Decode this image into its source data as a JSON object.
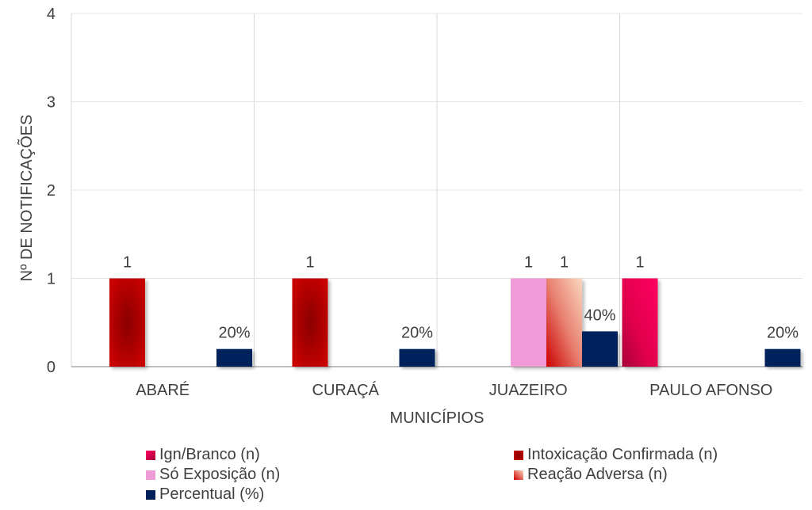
{
  "chart_data": {
    "type": "bar",
    "title": "",
    "xlabel": "MUNICÍPIOS",
    "ylabel": "Nº DE NOTIFICAÇÕES",
    "ylim": [
      0,
      4
    ],
    "yticks": [
      "0",
      "1",
      "2",
      "3",
      "4"
    ],
    "grid": true,
    "legend_position": "bottom",
    "categories": [
      "ABARÉ",
      "CURAÇÁ",
      "JUAZEIRO",
      "PAULO AFONSO"
    ],
    "series": [
      {
        "name": "Ign/Branco (n)",
        "values": [
          0,
          0,
          0,
          1
        ],
        "labels": [
          "",
          "",
          "",
          "1"
        ],
        "color": "#e8004f"
      },
      {
        "name": "Intoxicação Confirmada (n)",
        "values": [
          1,
          1,
          0,
          0
        ],
        "labels": [
          "1",
          "1",
          "",
          ""
        ],
        "color": "#b00000"
      },
      {
        "name": "Só Exposição (n)",
        "values": [
          0,
          0,
          1,
          0
        ],
        "labels": [
          "",
          "",
          "1",
          ""
        ],
        "color": "#f19ad8"
      },
      {
        "name": "Reação Adversa (n)",
        "values": [
          0,
          0,
          1,
          0
        ],
        "labels": [
          "",
          "",
          "1",
          ""
        ],
        "color": "#e86a5a"
      },
      {
        "name": "Percentual (%)",
        "values": [
          0.2,
          0.2,
          0.4,
          0.2
        ],
        "labels": [
          "20%",
          "20%",
          "40%",
          "20%"
        ],
        "color": "#00205b"
      }
    ]
  }
}
